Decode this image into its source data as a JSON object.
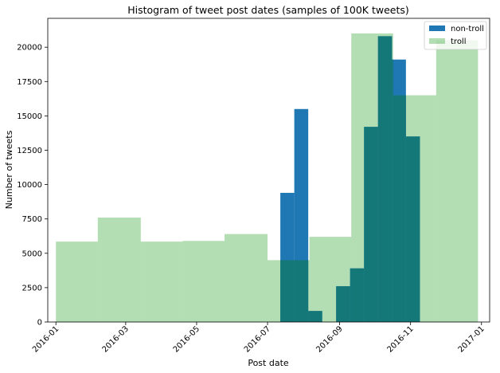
{
  "chart_data": {
    "type": "bar",
    "title": "Histogram of tweet post dates (samples of 100K tweets)",
    "xlabel": "Post date",
    "ylabel": "Number of tweets",
    "xlim": [
      "2015-12-25",
      "2017-01-08"
    ],
    "ylim": [
      0,
      22100
    ],
    "x_tick_labels": [
      "2016-01",
      "2016-03",
      "2016-05",
      "2016-07",
      "2016-09",
      "2016-11",
      "2017-01"
    ],
    "x_tick_dates": [
      "2016-01-01",
      "2016-03-01",
      "2016-05-01",
      "2016-07-01",
      "2016-09-01",
      "2016-11-01",
      "2017-01-01"
    ],
    "y_ticks": [
      0,
      2500,
      5000,
      7500,
      10000,
      12500,
      15000,
      17500,
      20000
    ],
    "y_tick_labels": [
      "0",
      "2500",
      "5000",
      "7500",
      "10000",
      "12500",
      "15000",
      "17500",
      "20000"
    ],
    "grid": false,
    "legend_position": "top-right",
    "series": [
      {
        "name": "non-troll",
        "color": "#1f77b4",
        "bins": [
          {
            "start": "2016-07-12",
            "end": "2016-07-24",
            "value": 9400
          },
          {
            "start": "2016-07-24",
            "end": "2016-08-05",
            "value": 15500
          },
          {
            "start": "2016-08-05",
            "end": "2016-08-17",
            "value": 800
          },
          {
            "start": "2016-08-17",
            "end": "2016-08-29",
            "value": 0
          },
          {
            "start": "2016-08-29",
            "end": "2016-09-10",
            "value": 2600
          },
          {
            "start": "2016-09-10",
            "end": "2016-09-22",
            "value": 3900
          },
          {
            "start": "2016-09-22",
            "end": "2016-10-04",
            "value": 14200
          },
          {
            "start": "2016-10-04",
            "end": "2016-10-16",
            "value": 20800
          },
          {
            "start": "2016-10-16",
            "end": "2016-10-28",
            "value": 19100
          },
          {
            "start": "2016-10-28",
            "end": "2016-11-09",
            "value": 13500
          }
        ]
      },
      {
        "name": "troll",
        "color": "#2ca02c",
        "bins": [
          {
            "start": "2016-01-01",
            "end": "2016-02-06",
            "value": 5850
          },
          {
            "start": "2016-02-06",
            "end": "2016-03-14",
            "value": 7600
          },
          {
            "start": "2016-03-14",
            "end": "2016-04-19",
            "value": 5850
          },
          {
            "start": "2016-04-19",
            "end": "2016-05-25",
            "value": 5900
          },
          {
            "start": "2016-05-25",
            "end": "2016-07-01",
            "value": 6400
          },
          {
            "start": "2016-07-01",
            "end": "2016-08-06",
            "value": 4500
          },
          {
            "start": "2016-08-06",
            "end": "2016-09-11",
            "value": 6200
          },
          {
            "start": "2016-09-11",
            "end": "2016-10-17",
            "value": 21000
          },
          {
            "start": "2016-10-17",
            "end": "2016-11-23",
            "value": 16500
          },
          {
            "start": "2016-11-23",
            "end": "2016-12-29",
            "value": 20500
          }
        ]
      }
    ]
  }
}
